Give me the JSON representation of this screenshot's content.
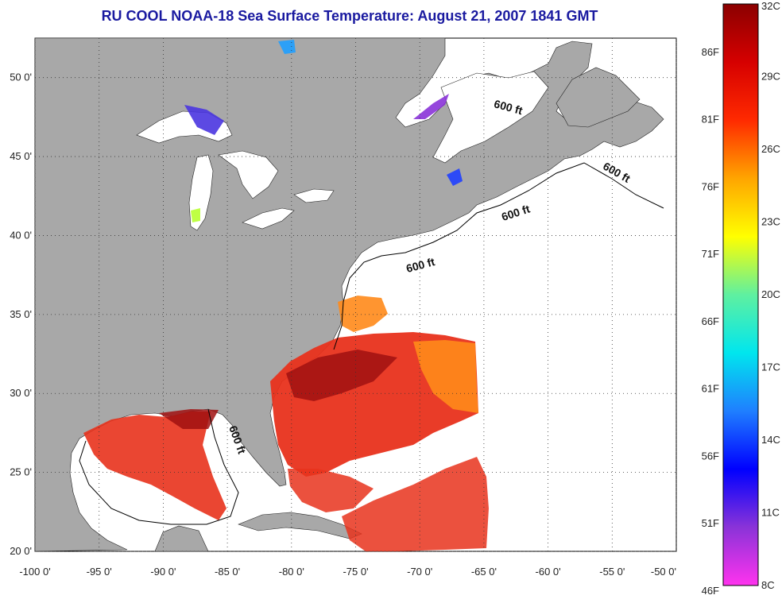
{
  "title": "RU COOL  NOAA-18  Sea Surface Temperature:  August 21, 2007 1841 GMT",
  "axes": {
    "lat_ticks": [
      "50 0'",
      "45 0'",
      "40 0'",
      "35 0'",
      "30 0'",
      "25 0'",
      "20 0'"
    ],
    "lon_ticks": [
      "-100 0'",
      "-95 0'",
      "-90 0'",
      "-85 0'",
      "-80 0'",
      "-75 0'",
      "-70 0'",
      "-65 0'",
      "-60 0'",
      "-55 0'",
      "-50 0'"
    ],
    "lat_values": [
      50,
      45,
      40,
      35,
      30,
      25,
      20
    ],
    "lon_values": [
      -100,
      -95,
      -90,
      -85,
      -80,
      -75,
      -70,
      -65,
      -60,
      -55,
      -50
    ],
    "lat_range": [
      20,
      52.5
    ],
    "lon_range": [
      -100,
      -50
    ],
    "grid": "dotted"
  },
  "contour_labels": [
    "600 ft",
    "600 ft",
    "600 ft",
    "600 ft",
    "600 ft"
  ],
  "colorbar": {
    "celsius_labels": [
      "32C",
      "29C",
      "26C",
      "23C",
      "20C",
      "17C",
      "14C",
      "11C",
      "8C"
    ],
    "fahrenheit_labels": [
      "86F",
      "81F",
      "76F",
      "71F",
      "66F",
      "61F",
      "56F",
      "51F",
      "46F"
    ],
    "celsius_values": [
      32,
      29,
      26,
      23,
      20,
      17,
      14,
      11,
      8
    ],
    "fahrenheit_values": [
      86,
      81,
      76,
      71,
      66,
      61,
      56,
      51,
      46
    ],
    "range_c": [
      8,
      32
    ],
    "stops": [
      "#ff33ee",
      "#8a33d8",
      "#0000ff",
      "#1f7fff",
      "#00e6ee",
      "#5ff0a0",
      "#ffff00",
      "#ffa500",
      "#ff2a00",
      "#d60000",
      "#8b0000"
    ]
  },
  "colors": {
    "land": "#a8a8a8",
    "ocean": "#ffffff",
    "warm_sst": "#e8321c",
    "hot_sst": "#a01010"
  }
}
